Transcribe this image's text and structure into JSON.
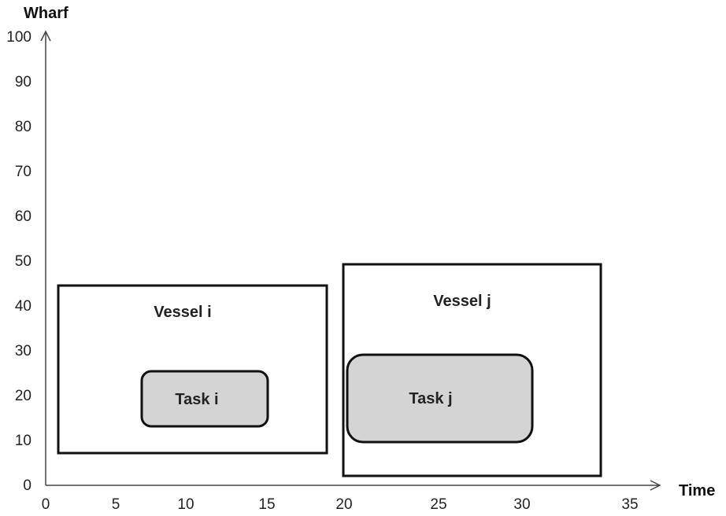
{
  "chart_data": {
    "type": "diagram",
    "xlabel": "Time",
    "ylabel": "Wharf",
    "xlim": [
      0,
      35
    ],
    "ylim": [
      0,
      100
    ],
    "x_ticks": [
      "0",
      "5",
      "10",
      "15",
      "20",
      "25",
      "30",
      "35"
    ],
    "y_ticks": [
      "0",
      "10",
      "20",
      "30",
      "40",
      "50",
      "60",
      "70",
      "80",
      "90",
      "100"
    ],
    "boxes": [
      {
        "label": "Vessel i",
        "kind": "vessel",
        "x": [
          1,
          19
        ],
        "y": [
          7,
          45
        ]
      },
      {
        "label": "Task i",
        "kind": "task",
        "x": [
          7,
          15
        ],
        "y": [
          13,
          26
        ]
      },
      {
        "label": "Vessel j",
        "kind": "vessel",
        "x": [
          20,
          34
        ],
        "y": [
          2,
          49.5
        ]
      },
      {
        "label": "Task j",
        "kind": "task",
        "x": [
          20.5,
          31
        ],
        "y": [
          9,
          30
        ]
      }
    ]
  }
}
